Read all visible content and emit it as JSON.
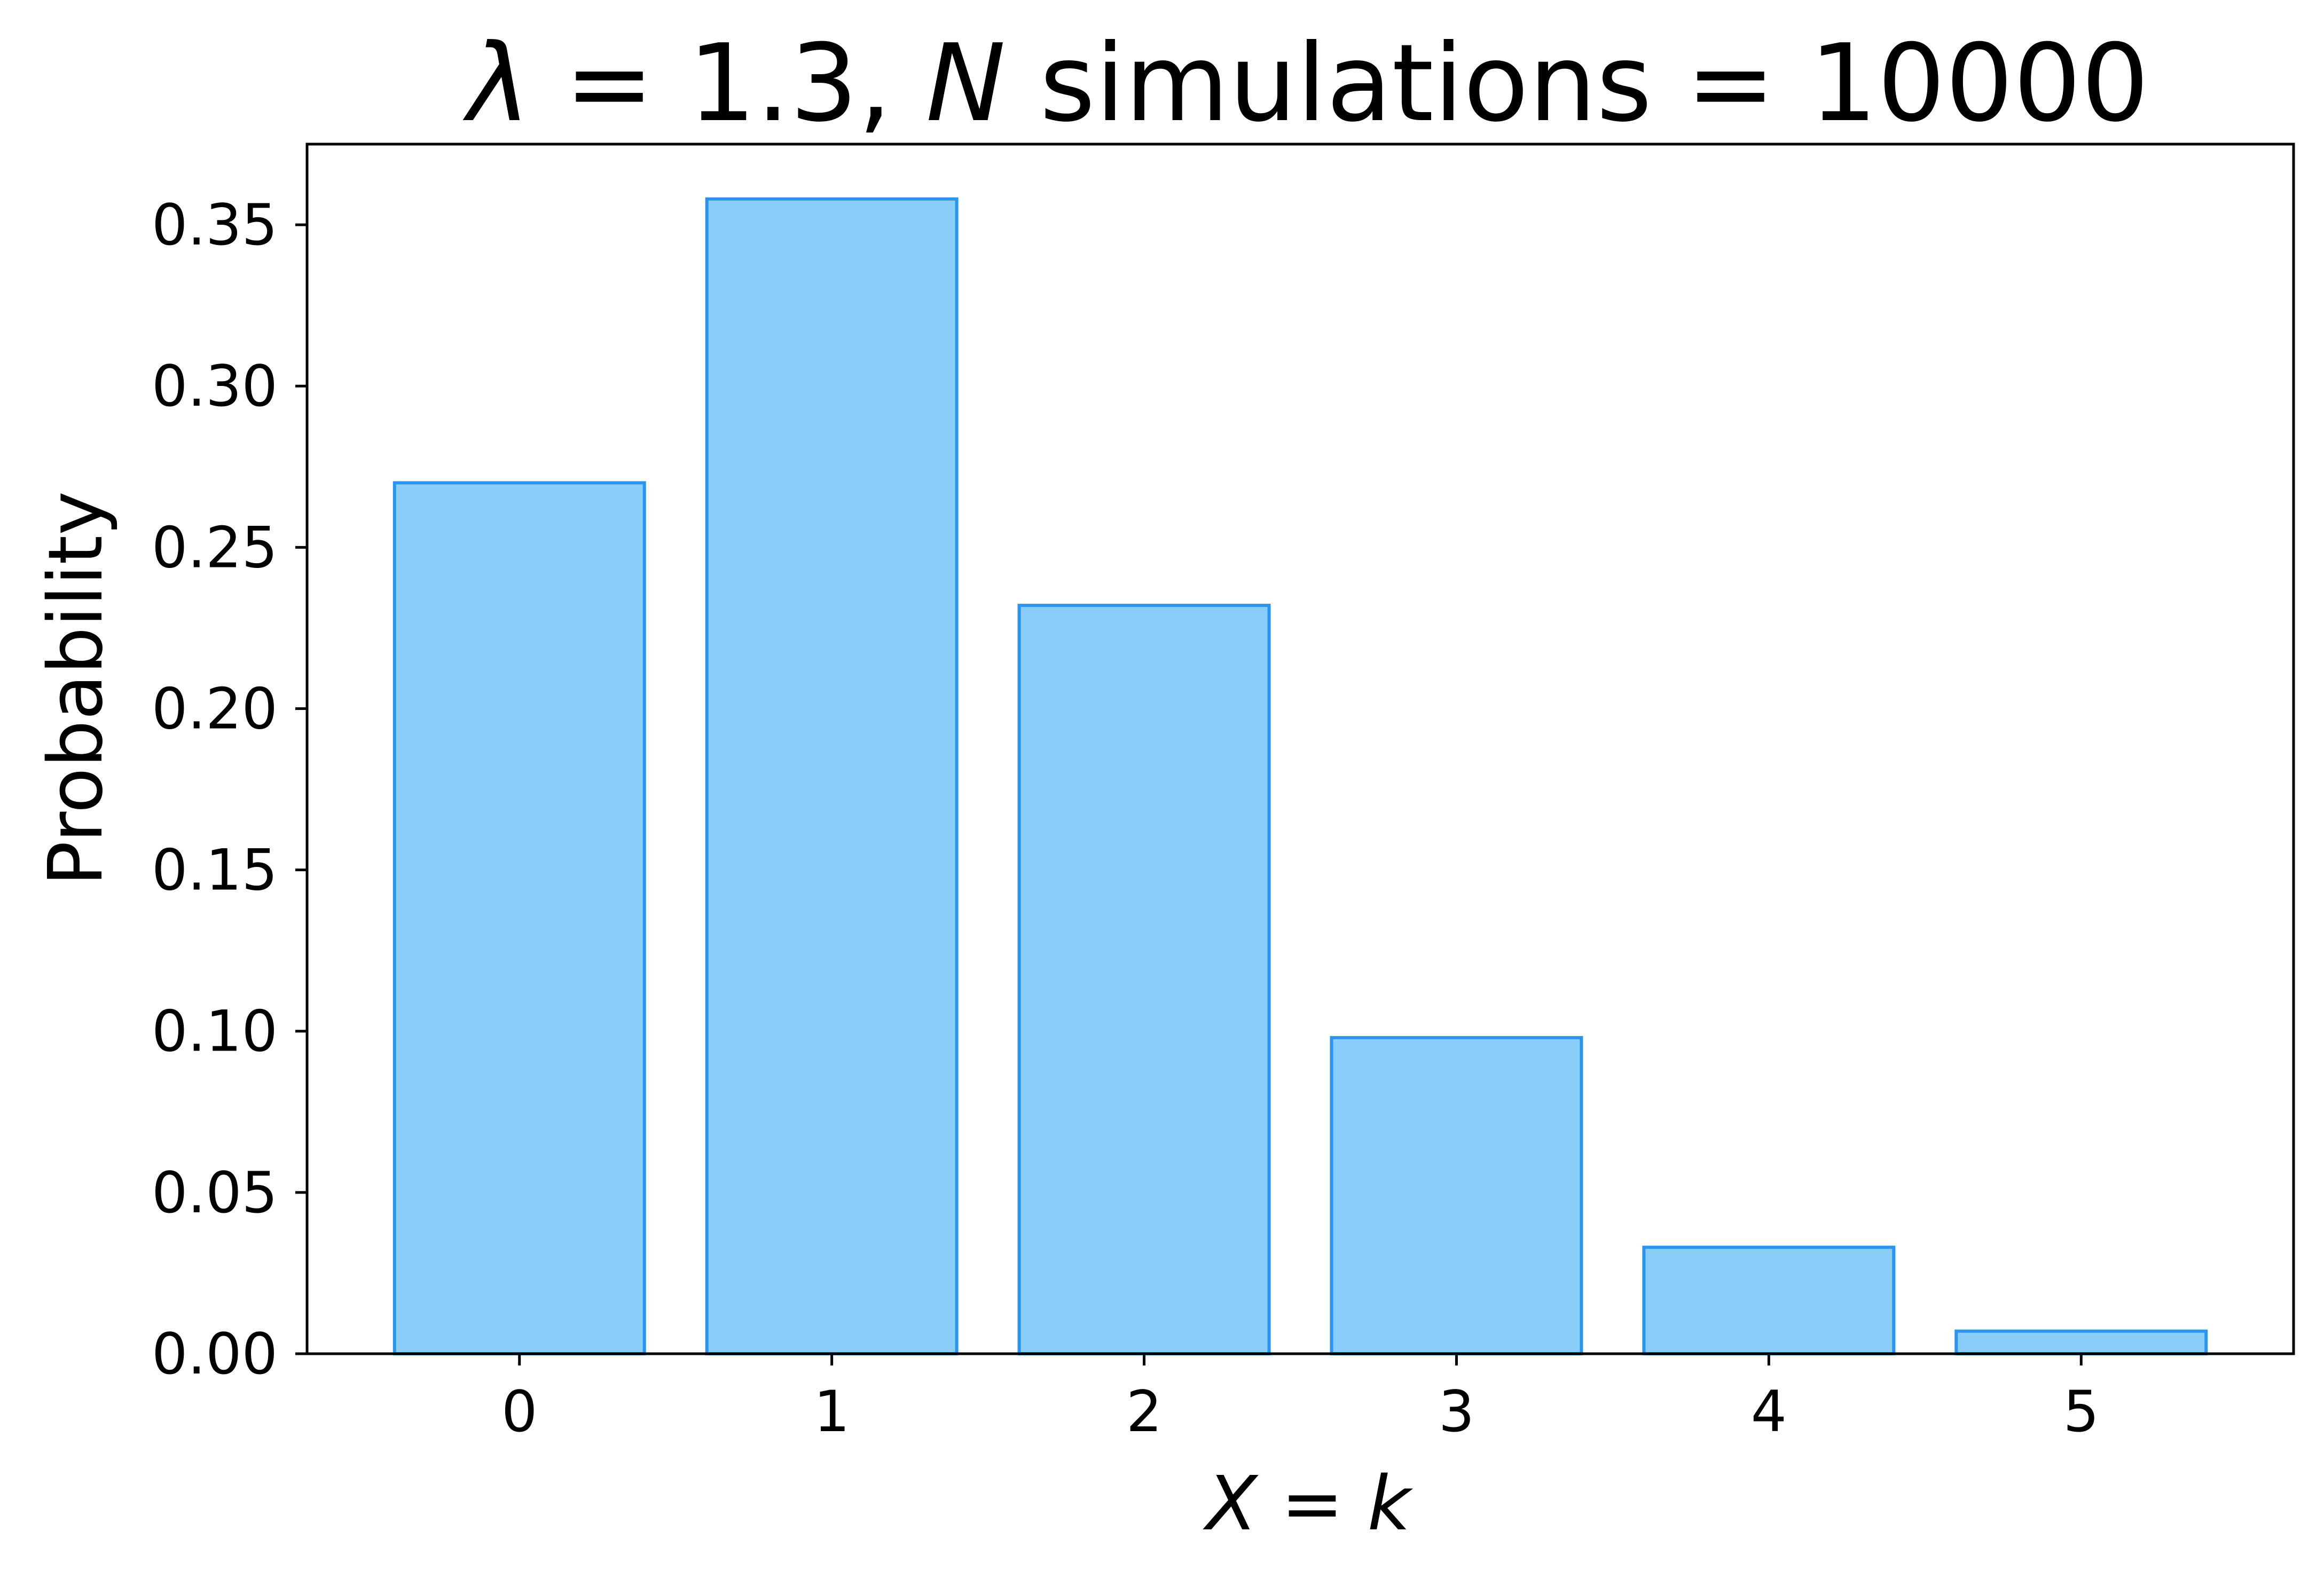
{
  "chart_data": {
    "type": "bar",
    "title": {
      "lambda_symbol": "λ",
      "part1": " = 1.3, ",
      "n_symbol": "N",
      "part2": " simulations = 10000"
    },
    "xlabel": {
      "var": "X",
      "eq": " = ",
      "k": "k"
    },
    "ylabel": "Probability",
    "categories": [
      "0",
      "1",
      "2",
      "3",
      "4",
      "5"
    ],
    "values": [
      0.27,
      0.358,
      0.232,
      0.098,
      0.033,
      0.007
    ],
    "ylim": [
      0,
      0.375
    ],
    "yticks": [
      "0.00",
      "0.05",
      "0.10",
      "0.15",
      "0.20",
      "0.25",
      "0.30",
      "0.35"
    ],
    "grid": false,
    "legend": "none",
    "colors": {
      "bar_fill": "#89CDF9",
      "bar_edge": "#2B95EE",
      "axis": "#000000"
    }
  }
}
